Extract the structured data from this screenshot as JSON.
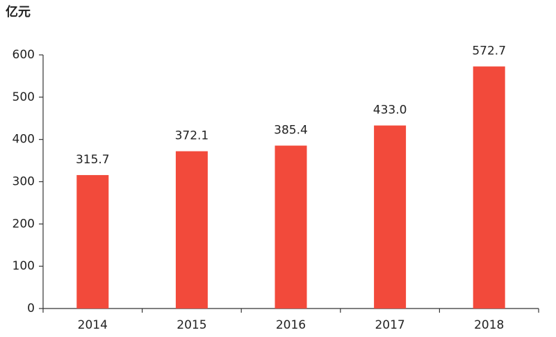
{
  "chart_data": {
    "type": "bar",
    "y_label": "亿元",
    "categories": [
      "2014",
      "2015",
      "2016",
      "2017",
      "2018"
    ],
    "values": [
      315.7,
      372.1,
      385.4,
      433.0,
      572.7
    ],
    "value_labels": [
      "315.7",
      "372.1",
      "385.4",
      "433.0",
      "572.7"
    ],
    "color": "#f24a3b",
    "ylim": [
      0,
      600
    ],
    "yticks": [
      0,
      100,
      200,
      300,
      400,
      500,
      600
    ],
    "grid": false
  }
}
